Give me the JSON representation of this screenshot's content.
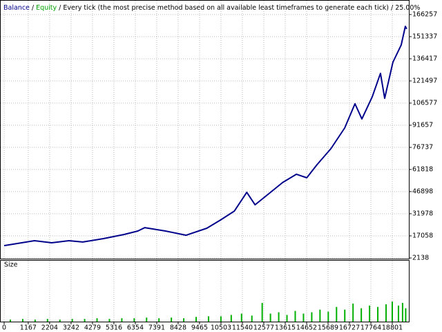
{
  "chart_data": [
    {
      "type": "line",
      "legend_sep": "/",
      "equity_label": "Equity",
      "equity_color": "#00a000",
      "title": "Every tick (the most precise method based on all available least timeframes to generate each tick)",
      "quality": "25.00%",
      "x": [
        0,
        1469,
        2304,
        3139,
        3806,
        4808,
        5810,
        6477,
        6811,
        7813,
        8815,
        9816,
        10484,
        11152,
        11753,
        12154,
        12821,
        13489,
        14157,
        14658,
        15159,
        15826,
        16494,
        16995,
        17329,
        17830,
        18230,
        18431,
        18831,
        19232,
        19432,
        19499
      ],
      "series": [
        {
          "name": "Balance",
          "color": "#00008b",
          "values": [
            10500,
            13800,
            12400,
            13800,
            12900,
            15200,
            18000,
            20300,
            22600,
            20300,
            17500,
            22200,
            27800,
            33800,
            46400,
            38000,
            45500,
            53000,
            58600,
            56200,
            65100,
            75800,
            89800,
            106100,
            95900,
            110800,
            126600,
            109800,
            134100,
            145700,
            158300,
            156500
          ]
        }
      ],
      "xlim": [
        0,
        19570
      ],
      "xticks": [
        0,
        1167,
        2204,
        3242,
        4279,
        5316,
        6354,
        7391,
        8428,
        9465,
        10503,
        11540,
        12577,
        13615,
        14652,
        15689,
        16727,
        17764,
        18801
      ],
      "ylim": [
        2138,
        173717
      ],
      "yticks": [
        2138,
        17058,
        31978,
        46898,
        61818,
        76737,
        91657,
        106577,
        121497,
        136417,
        151337,
        166257
      ],
      "grid": true
    },
    {
      "type": "bar",
      "title": "Size",
      "color": "#00b000",
      "x": [
        300,
        900,
        1500,
        2100,
        2700,
        3300,
        3900,
        4500,
        5100,
        5700,
        6300,
        6900,
        7500,
        8100,
        8700,
        9300,
        9900,
        10500,
        11000,
        11500,
        12000,
        12500,
        12900,
        13300,
        13700,
        14100,
        14500,
        14900,
        15300,
        15700,
        16100,
        16500,
        16900,
        17300,
        17700,
        18100,
        18500,
        18800,
        19100,
        19300,
        19450
      ],
      "values": [
        3,
        4,
        3,
        4,
        3,
        4,
        4,
        5,
        4,
        5,
        5,
        6,
        5,
        6,
        5,
        7,
        8,
        8,
        10,
        12,
        9,
        28,
        12,
        14,
        10,
        16,
        12,
        14,
        18,
        15,
        22,
        18,
        27,
        20,
        24,
        22,
        26,
        30,
        24,
        28,
        20
      ],
      "ylim": [
        0,
        90
      ]
    }
  ]
}
